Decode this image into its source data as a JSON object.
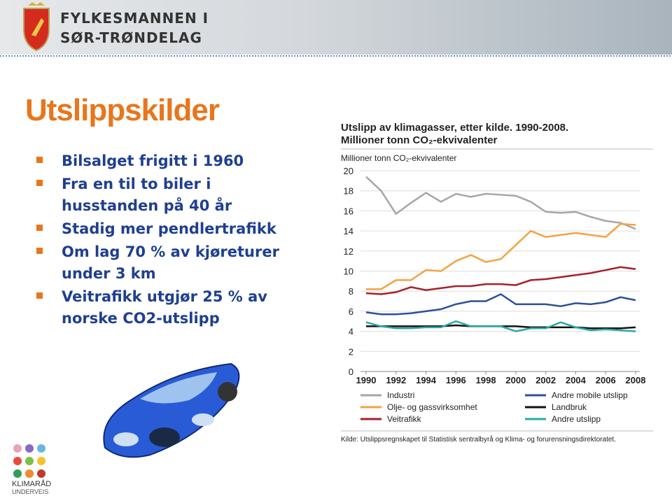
{
  "header": {
    "line1": "FYLKESMANNEN I",
    "line2": "SØR-TRØNDELAG"
  },
  "slide_title": "Utslippskilder",
  "bullets": [
    [
      "Bilsalget frigitt i 1960"
    ],
    [
      "Fra en til to biler i",
      "husstanden på 40 år"
    ],
    [
      "Stadig mer pendlertrafikk"
    ],
    [
      "Om lag 70 % av kjøreturer",
      "under 3 km"
    ],
    [
      "Veitrafikk utgjør 25 % av",
      "norske CO2-utslipp"
    ]
  ],
  "logo": {
    "line1": "KLIMARÅD",
    "line2": "UNDERVEIS"
  },
  "chart_data": {
    "type": "line",
    "title": "Utslipp av klimagasser, etter kilde. 1990-2008.",
    "subtitle": "Millioner tonn CO₂-ekvivalenter",
    "y_label": "Millioner tonn CO₂-ekvivalenter",
    "source": "Kilde: Utslippsregnskapet til Statistisk sentralbyrå og Klima- og forurensningsdirektoratet.",
    "x": [
      1990,
      1991,
      1992,
      1993,
      1994,
      1995,
      1996,
      1997,
      1998,
      1999,
      2000,
      2001,
      2002,
      2003,
      2004,
      2005,
      2006,
      2007,
      2008
    ],
    "xlim": [
      1990,
      2008
    ],
    "xticks": [
      1990,
      1992,
      1994,
      1996,
      1998,
      2000,
      2002,
      2004,
      2006,
      2008
    ],
    "ylim": [
      0,
      20
    ],
    "yticks": [
      0,
      2,
      4,
      6,
      8,
      10,
      12,
      14,
      16,
      18,
      20
    ],
    "grid": true,
    "series": [
      {
        "name": "Industri",
        "color": "#a6a6a6",
        "values": [
          19.4,
          18.0,
          15.7,
          16.8,
          17.8,
          16.9,
          17.7,
          17.4,
          17.7,
          17.6,
          17.5,
          16.9,
          15.9,
          15.8,
          15.9,
          15.4,
          15.0,
          14.8,
          14.2
        ]
      },
      {
        "name": "Olje- og gassvirksomhet",
        "color": "#f4a340",
        "values": [
          8.2,
          8.2,
          9.1,
          9.1,
          10.1,
          10.0,
          11.0,
          11.6,
          10.9,
          11.2,
          12.6,
          14.0,
          13.4,
          13.6,
          13.8,
          13.6,
          13.4,
          14.7,
          14.6
        ]
      },
      {
        "name": "Veitrafikk",
        "color": "#a6202a",
        "values": [
          7.8,
          7.7,
          7.9,
          8.4,
          8.1,
          8.3,
          8.5,
          8.5,
          8.7,
          8.7,
          8.6,
          9.1,
          9.2,
          9.4,
          9.6,
          9.8,
          10.1,
          10.4,
          10.2
        ]
      },
      {
        "name": "Andre mobile utslipp",
        "color": "#2e4f9a",
        "values": [
          5.9,
          5.7,
          5.7,
          5.8,
          6.0,
          6.2,
          6.7,
          7.0,
          7.0,
          7.7,
          6.7,
          6.7,
          6.7,
          6.5,
          6.8,
          6.7,
          6.9,
          7.4,
          7.1
        ]
      },
      {
        "name": "Landbruk",
        "color": "#111111",
        "values": [
          4.5,
          4.5,
          4.5,
          4.5,
          4.5,
          4.5,
          4.6,
          4.5,
          4.5,
          4.5,
          4.5,
          4.4,
          4.4,
          4.4,
          4.4,
          4.3,
          4.3,
          4.3,
          4.4
        ]
      },
      {
        "name": "Andre utslipp",
        "color": "#2aa9a4",
        "values": [
          4.9,
          4.5,
          4.3,
          4.3,
          4.4,
          4.4,
          5.0,
          4.5,
          4.5,
          4.5,
          4.0,
          4.3,
          4.3,
          4.9,
          4.4,
          4.1,
          4.2,
          4.1,
          4.0
        ]
      }
    ]
  }
}
